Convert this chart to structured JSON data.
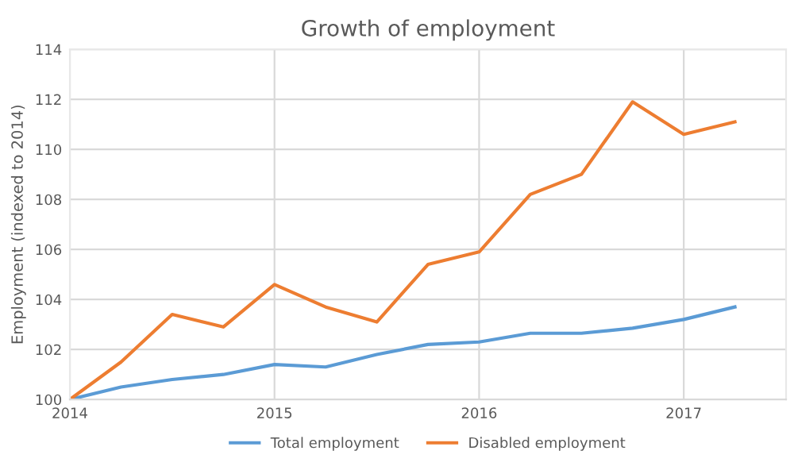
{
  "chart_data": {
    "type": "line",
    "title": "Growth of employment",
    "ylabel": "Employment (indexed to 2014)",
    "x": [
      2014,
      2014.25,
      2014.5,
      2014.75,
      2015,
      2015.25,
      2015.5,
      2015.75,
      2016,
      2016.25,
      2016.5,
      2016.75,
      2017,
      2017.25
    ],
    "series": [
      {
        "name": "Total employment",
        "color": "#5b9bd5",
        "values": [
          100,
          100.5,
          100.8,
          101.0,
          101.4,
          101.3,
          101.8,
          102.2,
          102.3,
          102.65,
          102.65,
          102.85,
          103.2,
          103.7
        ]
      },
      {
        "name": "Disabled employment",
        "color": "#ed7d31",
        "values": [
          100,
          101.5,
          103.4,
          102.9,
          104.6,
          103.7,
          103.1,
          105.4,
          105.9,
          108.2,
          109.0,
          111.9,
          110.6,
          111.1
        ]
      }
    ],
    "xlim": [
      2014,
      2017.5
    ],
    "xticks": [
      2014,
      2015,
      2016,
      2017
    ],
    "ylim": [
      100,
      114
    ],
    "yticks": [
      100,
      102,
      104,
      106,
      108,
      110,
      112,
      114
    ],
    "grid": true,
    "legend": "bottom",
    "marker": "none",
    "line_style": "solid"
  }
}
